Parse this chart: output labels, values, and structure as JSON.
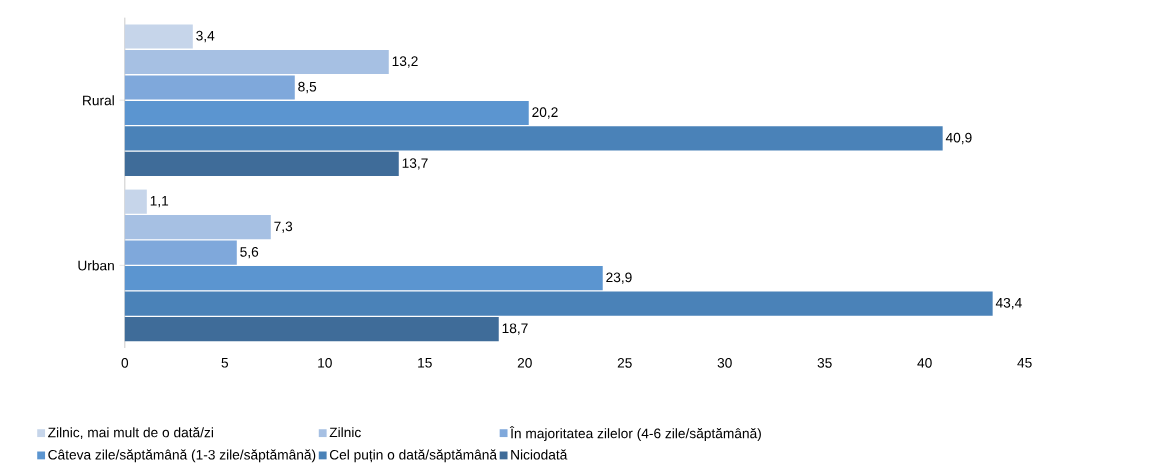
{
  "chart_data": {
    "type": "bar",
    "orientation": "horizontal",
    "categories": [
      "Rural",
      "Urban"
    ],
    "series": [
      {
        "name": "Zilnic, mai mult de o dată/zi",
        "color": "#c6d5ea",
        "values": [
          3.4,
          1.1
        ],
        "value_labels": [
          "3,4",
          "1,1"
        ]
      },
      {
        "name": "Zilnic",
        "color": "#a6c0e3",
        "values": [
          13.2,
          7.3
        ],
        "value_labels": [
          "13,2",
          "7,3"
        ]
      },
      {
        "name": "În majoritatea zilelor (4-6 zile/săptămână)",
        "color": "#7fa8db",
        "values": [
          8.5,
          5.6
        ],
        "value_labels": [
          "8,5",
          "5,6"
        ]
      },
      {
        "name": "Câteva zile/săptămână (1-3 zile/săptămână)",
        "color": "#5b95d0",
        "values": [
          20.2,
          23.9
        ],
        "value_labels": [
          "20,2",
          "23,9"
        ]
      },
      {
        "name": "Cel puțin o dată/săptămână",
        "color": "#4a82b8",
        "values": [
          40.9,
          43.4
        ],
        "value_labels": [
          "40,9",
          "43,4"
        ]
      },
      {
        "name": "Niciodată",
        "color": "#3f6c99",
        "values": [
          13.7,
          18.7
        ],
        "value_labels": [
          "13,7",
          "18,7"
        ]
      }
    ],
    "xlim": [
      0,
      45
    ],
    "xticks": [
      0,
      5,
      10,
      15,
      20,
      25,
      30,
      35,
      40,
      45
    ],
    "legend": "bottom",
    "grid": false
  }
}
